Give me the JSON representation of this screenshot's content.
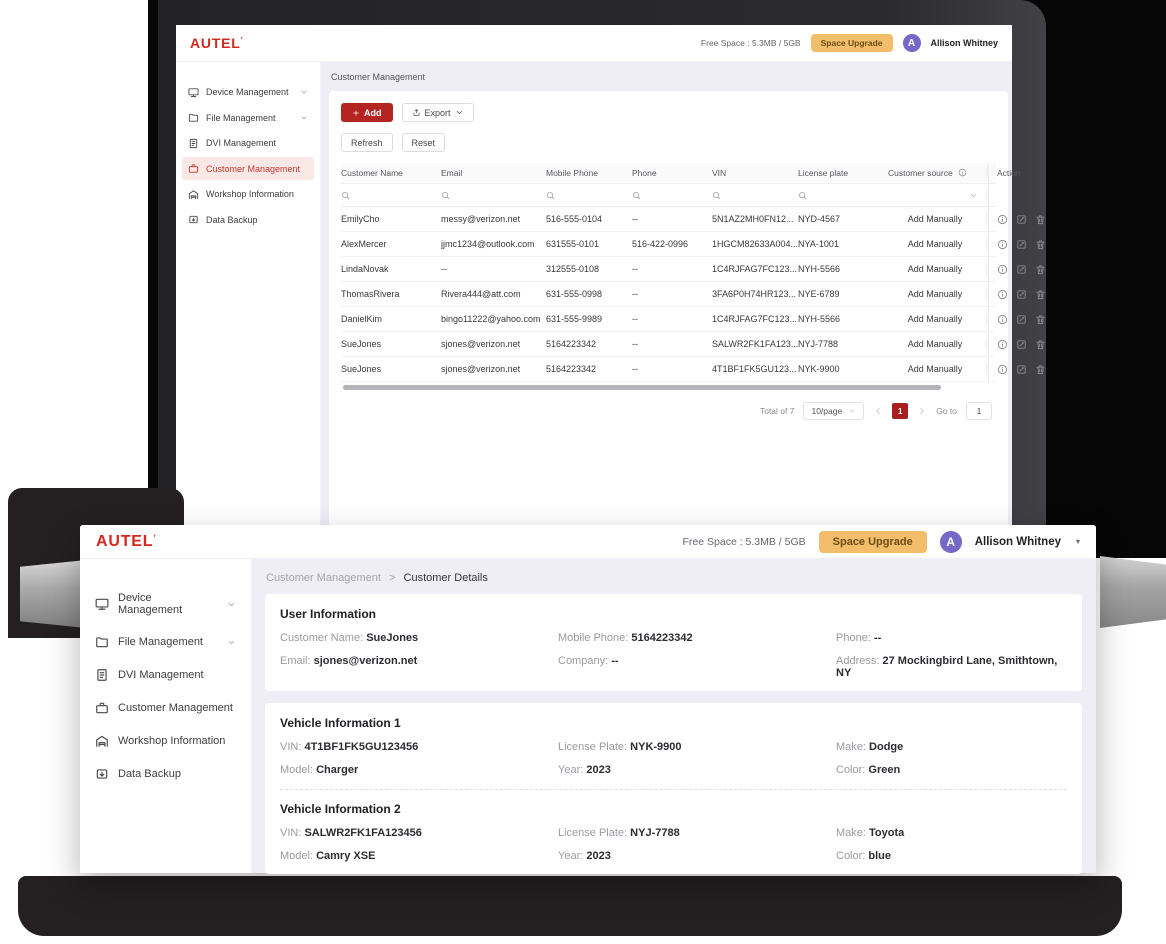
{
  "colors": {
    "brand_red": "#d3281e",
    "button_red": "#b42421",
    "upgrade_orange": "#f2be6b",
    "avatar_purple": "#7568c8",
    "active_page_red": "#a81e1c",
    "main_bg": "#efeef6"
  },
  "common": {
    "logo_text": "AUTEL",
    "free_space": "Free Space : 5.3MB / 5GB",
    "space_upgrade_label": "Space Upgrade",
    "avatar_initial": "A",
    "user_name": "Allison Whitney",
    "sidebar_items": [
      {
        "label": "Device Management",
        "icon": "monitor-icon",
        "chevron": true
      },
      {
        "label": "File Management",
        "icon": "folder-icon",
        "chevron": true
      },
      {
        "label": "DVI Management",
        "icon": "clipboard-icon",
        "chevron": false
      },
      {
        "label": "Customer Management",
        "icon": "briefcase-icon",
        "chevron": false
      },
      {
        "label": "Workshop Information",
        "icon": "garage-icon",
        "chevron": false
      },
      {
        "label": "Data Backup",
        "icon": "backup-icon",
        "chevron": false
      }
    ]
  },
  "back_window": {
    "breadcrumb": "Customer Management",
    "toolbar": {
      "add_label": "Add",
      "export_label": "Export",
      "refresh_label": "Refresh",
      "reset_label": "Reset"
    },
    "table": {
      "columns": [
        "Customer Name",
        "Email",
        "Mobile Phone",
        "Phone",
        "VIN",
        "License plate",
        "Customer source",
        "Action"
      ],
      "rows": [
        [
          "EmilyCho",
          "messy@verizon.net",
          "516-555-0104",
          "--",
          "5N1AZ2MH0FN12...",
          "NYD-4567",
          "Add Manually"
        ],
        [
          "AlexMercer",
          "jjmc1234@outlook.com",
          "631555-0101",
          "516-422-0996",
          "1HGCM82633A004...",
          "NYA-1001",
          "Add Manually"
        ],
        [
          "LindaNovak",
          "--",
          "312555-0108",
          "--",
          "1C4RJFAG7FC123...",
          "NYH-5566",
          "Add Manually"
        ],
        [
          "ThomasRivera",
          "Rivera444@att.com",
          "631-555-0998",
          "--",
          "3FA6P0H74HR123...",
          "NYE-6789",
          "Add Manually"
        ],
        [
          "DanielKim",
          "bingo11222@yahoo.com",
          "631-555-9989",
          "--",
          "1C4RJFAG7FC123...",
          "NYH-5566",
          "Add Manually"
        ],
        [
          "SueJones",
          "sjones@verizon.net",
          "5164223342",
          "--",
          "SALWR2FK1FA123...",
          "NYJ-7788",
          "Add Manually"
        ],
        [
          "SueJones",
          "sjones@verizon.net",
          "5164223342",
          "--",
          "4T1BF1FK5GU123...",
          "NYK-9900",
          "Add Manually"
        ]
      ]
    },
    "pagination": {
      "total_label": "Total of 7",
      "page_size": "10/page",
      "current_page": "1",
      "goto_label": "Go to",
      "goto_value": "1"
    }
  },
  "front_window": {
    "breadcrumb": {
      "parent": "Customer Management",
      "separator": ">",
      "current": "Customer Details"
    },
    "user_info": {
      "title": "User Information",
      "rows": [
        [
          {
            "label": "Customer Name:",
            "value": "SueJones"
          },
          {
            "label": "Mobile Phone:",
            "value": "5164223342"
          },
          {
            "label": "Phone:",
            "value": "--"
          }
        ],
        [
          {
            "label": "Email:",
            "value": "sjones@verizon.net"
          },
          {
            "label": "Company:",
            "value": "--"
          },
          {
            "label": "Address:",
            "value": "27 Mockingbird Lane, Smithtown, NY"
          }
        ]
      ]
    },
    "vehicle1": {
      "title": "Vehicle Information 1",
      "rows": [
        [
          {
            "label": "VIN:",
            "value": "4T1BF1FK5GU123456"
          },
          {
            "label": "License Plate:",
            "value": "NYK-9900"
          },
          {
            "label": "Make:",
            "value": "Dodge"
          }
        ],
        [
          {
            "label": "Model:",
            "value": "Charger"
          },
          {
            "label": "Year:",
            "value": "2023"
          },
          {
            "label": "Color:",
            "value": "Green"
          }
        ]
      ]
    },
    "vehicle2": {
      "title": "Vehicle Information 2",
      "rows": [
        [
          {
            "label": "VIN:",
            "value": "SALWR2FK1FA123456"
          },
          {
            "label": "License Plate:",
            "value": "NYJ-7788"
          },
          {
            "label": "Make:",
            "value": "Toyota"
          }
        ],
        [
          {
            "label": "Model:",
            "value": "Camry XSE"
          },
          {
            "label": "Year:",
            "value": "2023"
          },
          {
            "label": "Color:",
            "value": "blue"
          }
        ]
      ]
    }
  }
}
